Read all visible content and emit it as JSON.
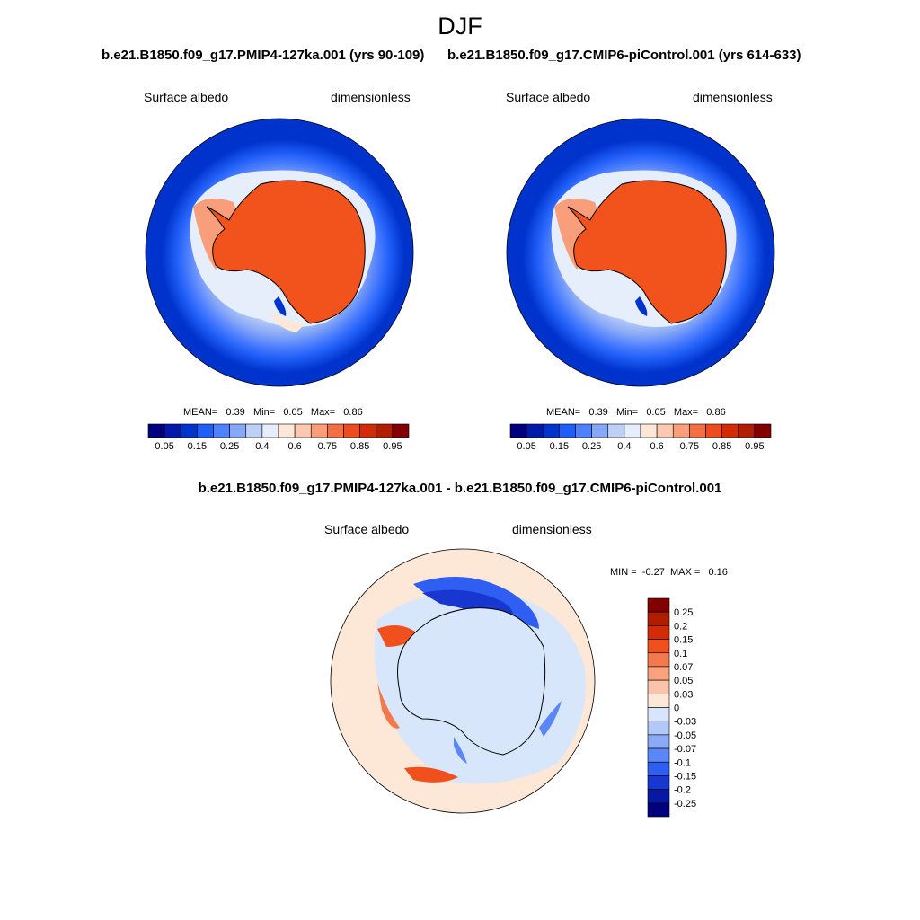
{
  "season": "DJF",
  "panels": [
    {
      "title": "b.e21.B1850.f09_g17.PMIP4-127ka.001 (yrs 90-109)",
      "left_label": "Surface albedo",
      "right_label": "dimensionless",
      "stats": {
        "mean_label": "MEAN=",
        "mean": "0.39",
        "min_label": "Min=",
        "min": "0.05",
        "max_label": "Max=",
        "max": "0.86"
      }
    },
    {
      "title": "b.e21.B1850.f09_g17.CMIP6-piControl.001 (yrs 614-633)",
      "left_label": "Surface albedo",
      "right_label": "dimensionless",
      "stats": {
        "mean_label": "MEAN=",
        "mean": "0.39",
        "min_label": "Min=",
        "min": "0.05",
        "max_label": "Max=",
        "max": "0.86"
      }
    },
    {
      "title": "b.e21.B1850.f09_g17.PMIP4-127ka.001 - b.e21.B1850.f09_g17.CMIP6-piControl.001",
      "left_label": "Surface albedo",
      "right_label": "dimensionless",
      "minmax": {
        "min_label": "MIN =",
        "min": "-0.27",
        "max_label": "MAX =",
        "max": "0.16"
      }
    }
  ],
  "chart_data": [
    {
      "type": "heatmap",
      "projection": "south polar stereographic",
      "variable": "Surface albedo",
      "units": "dimensionless",
      "colorbar": {
        "orientation": "horizontal",
        "levels": [
          0.05,
          0.1,
          0.15,
          0.2,
          0.25,
          0.3,
          0.4,
          0.5,
          0.6,
          0.7,
          0.75,
          0.8,
          0.85,
          0.9,
          0.95
        ],
        "tick_labels": [
          "0.05",
          "0.15",
          "0.25",
          "0.4",
          "0.6",
          "0.75",
          "0.85",
          "0.95"
        ],
        "colors": [
          "#00007f",
          "#0019a8",
          "#0033cc",
          "#1f5ef7",
          "#4f80ff",
          "#87a8f7",
          "#bdd0f7",
          "#e6eefb",
          "#fde7d7",
          "#fbc9b0",
          "#f89e7a",
          "#f36f46",
          "#ee4b1f",
          "#d52a06",
          "#b01d00",
          "#820000"
        ]
      }
    },
    {
      "type": "heatmap",
      "projection": "south polar stereographic",
      "variable": "Surface albedo",
      "units": "dimensionless",
      "colorbar": {
        "orientation": "horizontal",
        "levels": [
          0.05,
          0.1,
          0.15,
          0.2,
          0.25,
          0.3,
          0.4,
          0.5,
          0.6,
          0.7,
          0.75,
          0.8,
          0.85,
          0.9,
          0.95
        ],
        "tick_labels": [
          "0.05",
          "0.15",
          "0.25",
          "0.4",
          "0.6",
          "0.75",
          "0.85",
          "0.95"
        ],
        "colors": [
          "#00007f",
          "#0019a8",
          "#0033cc",
          "#1f5ef7",
          "#4f80ff",
          "#87a8f7",
          "#bdd0f7",
          "#e6eefb",
          "#fde7d7",
          "#fbc9b0",
          "#f89e7a",
          "#f36f46",
          "#ee4b1f",
          "#d52a06",
          "#b01d00",
          "#820000"
        ]
      }
    },
    {
      "type": "heatmap",
      "projection": "south polar stereographic",
      "variable": "Surface albedo difference",
      "units": "dimensionless",
      "colorbar": {
        "orientation": "vertical",
        "tick_labels": [
          "0.25",
          "0.2",
          "0.15",
          "0.1",
          "0.07",
          "0.05",
          "0.03",
          "0",
          "-0.03",
          "-0.05",
          "-0.07",
          "-0.1",
          "-0.15",
          "-0.2",
          "-0.25"
        ],
        "colors": [
          "#820000",
          "#b01d00",
          "#d52a06",
          "#f0501e",
          "#f5784a",
          "#f9a27e",
          "#fbc4a8",
          "#fde7d7",
          "#d8e6fb",
          "#b2c9f7",
          "#8aaaf5",
          "#5a86f7",
          "#2f5ef2",
          "#1737d0",
          "#0718a5",
          "#00007f"
        ]
      }
    }
  ],
  "colors": {
    "ocean_deep": "#0033cc",
    "land_orange": "#f2521c",
    "diff_neutral_blue": "#d8e6fb",
    "diff_neutral_peach": "#fde7d7"
  }
}
